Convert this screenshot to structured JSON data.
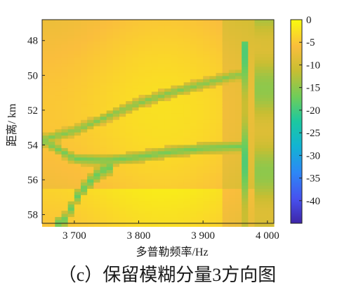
{
  "chart_data": {
    "type": "heatmap",
    "caption": "（c）保留模糊分量3方向图",
    "xlabel": "多普勒频率/Hz",
    "ylabel": "距离/ km",
    "xlim": [
      3650,
      4010
    ],
    "ylim": [
      46.8,
      58.5
    ],
    "y_reversed": true,
    "xticks": [
      3700,
      3800,
      3900,
      4000
    ],
    "xtick_labels": [
      "3 700",
      "3 800",
      "3 900",
      "4 000"
    ],
    "yticks": [
      48,
      50,
      52,
      54,
      56,
      58
    ],
    "ytick_labels": [
      "48",
      "50",
      "52",
      "54",
      "56",
      "58"
    ],
    "colorbar": {
      "colormap": "parula",
      "range": [
        -45,
        0
      ],
      "ticks": [
        0,
        -5,
        -10,
        -15,
        -20,
        -25,
        -30,
        -35,
        -40
      ],
      "tick_labels": [
        "0",
        "-5",
        "-10",
        "-15",
        "-20",
        "-25",
        "-30",
        "-35",
        "-40"
      ]
    },
    "features": {
      "x_bin_hz": 10,
      "upper_curve": {
        "description_points_x": [
          3650,
          3700,
          3750,
          3800,
          3850,
          3900,
          3950
        ],
        "range_km": [
          53.7,
          53.2,
          52.4,
          51.6,
          51.0,
          50.5,
          50.0
        ],
        "level_db": -16
      },
      "lower_curve": {
        "description_points_x": [
          3650,
          3700,
          3750,
          3800,
          3850,
          3900,
          3950
        ],
        "range_km": [
          53.7,
          54.8,
          54.9,
          54.7,
          54.4,
          54.2,
          54.1
        ],
        "level_db": -17
      },
      "steep_branch": {
        "description_points_x": [
          3680,
          3690,
          3700,
          3710,
          3720,
          3730,
          3740,
          3750
        ],
        "range_km": [
          58.5,
          58.1,
          57.2,
          56.7,
          56.3,
          55.9,
          55.6,
          55.3
        ],
        "level_db": -18
      },
      "vertical_column": {
        "x_range_hz": [
          3960,
          3970
        ],
        "range_span_km": [
          48.0,
          58.5
        ],
        "level_db": -15
      },
      "right_columns": {
        "x_range_hz": [
          3980,
          4000
        ],
        "level_db": -12
      }
    }
  }
}
